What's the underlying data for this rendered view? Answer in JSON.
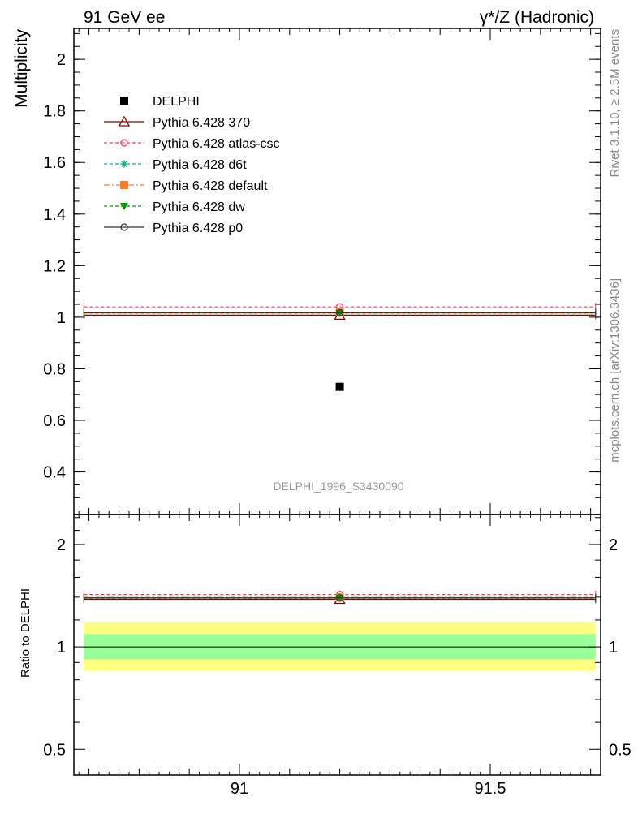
{
  "header": {
    "left": "91 GeV ee",
    "right": "γ*/Z (Hadronic)"
  },
  "side_labels": {
    "rivet": "Rivet 3.1.10, ≥ 2.5M events",
    "mcplots": "mcplots.cern.ch [arXiv:1306.3436]"
  },
  "watermark": "DELPHI_1996_S3430090",
  "chart_data": [
    {
      "type": "scatter",
      "panel": "main",
      "ylabel": "Multiplicity",
      "xlim": [
        90.67,
        91.72
      ],
      "ylim": [
        0.235,
        2.12
      ],
      "yticks": [
        0.4,
        0.6,
        0.8,
        1,
        1.2,
        1.4,
        1.6,
        1.8,
        2
      ],
      "ytick_labels": [
        "0.4",
        "0.6",
        "0.8",
        "1",
        "1.2",
        "1.4",
        "1.6",
        "1.8",
        "2"
      ],
      "xticks": [
        91,
        91.5
      ],
      "legend_position": "top-left",
      "data": {
        "name": "DELPHI",
        "x": 91.2,
        "y": 0.73,
        "color": "#000000",
        "marker": "square"
      },
      "series": [
        {
          "name": "Pythia 6.428 370",
          "x": [
            90.69,
            91.71
          ],
          "y": 1.008,
          "marker_x": 91.2,
          "color": "#8b0000",
          "dash": "",
          "marker": "triangle-open"
        },
        {
          "name": "Pythia 6.428 atlas-csc",
          "x": [
            90.69,
            91.71
          ],
          "y": 1.04,
          "marker_x": 91.2,
          "color": "#ff3355",
          "dash": "4,3",
          "marker": "circle-open"
        },
        {
          "name": "Pythia 6.428 d6t",
          "x": [
            90.69,
            91.71
          ],
          "y": 1.018,
          "marker_x": 91.2,
          "color": "#00b380",
          "dash": "4,3",
          "marker": "star"
        },
        {
          "name": "Pythia 6.428 default",
          "x": [
            90.69,
            91.71
          ],
          "y": 1.02,
          "marker_x": 91.2,
          "color": "#ff7f27",
          "dash": "7,3,2,3",
          "marker": "square"
        },
        {
          "name": "Pythia 6.428 dw",
          "x": [
            90.69,
            91.71
          ],
          "y": 1.016,
          "marker_x": 91.2,
          "color": "#009900",
          "dash": "4,3",
          "marker": "triangle-down"
        },
        {
          "name": "Pythia 6.428 p0",
          "x": [
            90.69,
            91.71
          ],
          "y": 1.017,
          "marker_x": 91.2,
          "color": "#333333",
          "dash": "",
          "marker": "circle-open"
        }
      ]
    },
    {
      "type": "scatter",
      "panel": "ratio",
      "ylabel": "Ratio to DELPHI",
      "scale": "log",
      "xlim": [
        90.67,
        91.72
      ],
      "ylim": [
        0.42,
        2.45
      ],
      "yticks": [
        0.5,
        1,
        2
      ],
      "ytick_labels": [
        "0.5",
        "1",
        "2"
      ],
      "xticks": [
        91,
        91.5
      ],
      "xtick_labels": [
        "91",
        "91.5"
      ],
      "bands": [
        {
          "name": "outer",
          "low": 0.85,
          "high": 1.18,
          "color": "#ffff80"
        },
        {
          "name": "inner",
          "low": 0.92,
          "high": 1.09,
          "color": "#99ff99"
        }
      ],
      "reference": 1,
      "series": [
        {
          "name": "Pythia 6.428 370",
          "y": 1.38,
          "color": "#8b0000",
          "dash": "",
          "marker": "triangle-open"
        },
        {
          "name": "Pythia 6.428 atlas-csc",
          "y": 1.425,
          "color": "#ff3355",
          "dash": "4,3",
          "marker": "circle-open"
        },
        {
          "name": "Pythia 6.428 d6t",
          "y": 1.395,
          "color": "#00b380",
          "dash": "4,3",
          "marker": "star"
        },
        {
          "name": "Pythia 6.428 default",
          "y": 1.398,
          "color": "#ff7f27",
          "dash": "7,3,2,3",
          "marker": "square"
        },
        {
          "name": "Pythia 6.428 dw",
          "y": 1.39,
          "color": "#009900",
          "dash": "4,3",
          "marker": "triangle-down"
        },
        {
          "name": "Pythia 6.428 p0",
          "y": 1.393,
          "color": "#333333",
          "dash": "",
          "marker": "circle-open"
        }
      ]
    }
  ]
}
